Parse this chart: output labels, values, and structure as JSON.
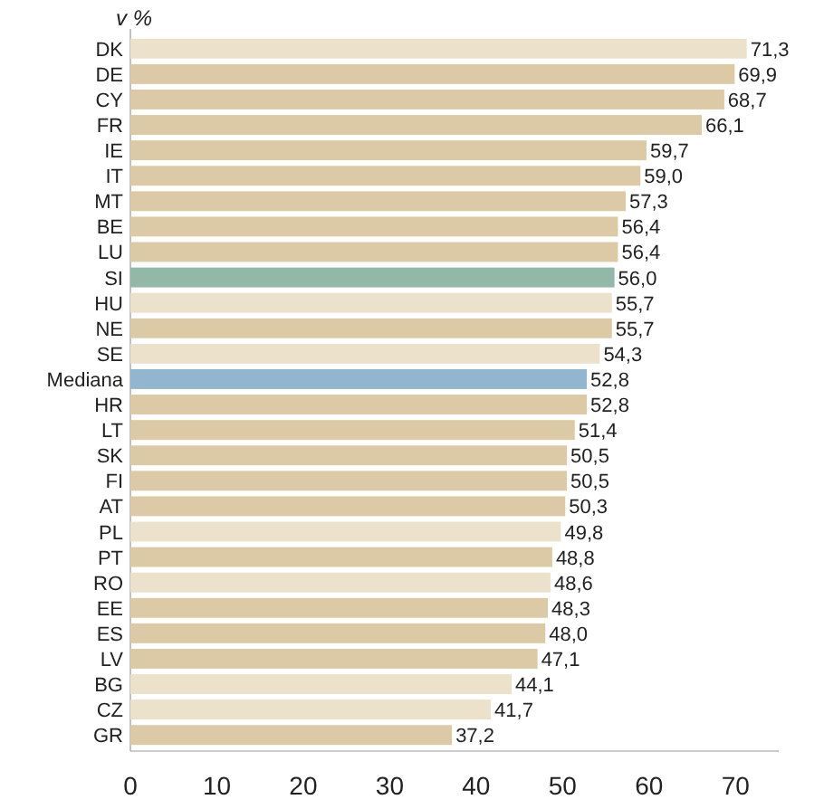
{
  "chart_data": {
    "type": "bar",
    "orientation": "horizontal",
    "xlabel": "v %",
    "categories": [
      "DK",
      "DE",
      "CY",
      "FR",
      "IE",
      "IT",
      "MT",
      "BE",
      "LU",
      "SI",
      "HU",
      "NE",
      "SE",
      "Mediana",
      "HR",
      "LT",
      "SK",
      "FI",
      "AT",
      "PL",
      "PT",
      "RO",
      "EE",
      "ES",
      "LV",
      "BG",
      "CZ",
      "GR"
    ],
    "values": [
      71.3,
      69.9,
      68.7,
      66.1,
      59.7,
      59.0,
      57.3,
      56.4,
      56.4,
      56.0,
      55.7,
      55.7,
      54.3,
      52.8,
      52.8,
      51.4,
      50.5,
      50.5,
      50.3,
      49.8,
      48.8,
      48.6,
      48.3,
      48.0,
      47.1,
      44.1,
      41.7,
      37.2
    ],
    "value_labels": [
      "71,3",
      "69,9",
      "68,7",
      "66,1",
      "59,7",
      "59,0",
      "57,3",
      "56,4",
      "56,4",
      "56,0",
      "55,7",
      "55,7",
      "54,3",
      "52,8",
      "52,8",
      "51,4",
      "50,5",
      "50,5",
      "50,3",
      "49,8",
      "48,8",
      "48,6",
      "48,3",
      "48,0",
      "47,1",
      "44,1",
      "41,7",
      "37,2"
    ],
    "colors": [
      "#ece2cc",
      "#dccaa6",
      "#dccaa6",
      "#dccaa6",
      "#dccaa6",
      "#dccaa6",
      "#dccaa6",
      "#dccaa6",
      "#dccaa6",
      "#92b8a8",
      "#ece2cc",
      "#dccaa6",
      "#ece2cc",
      "#92b6cf",
      "#dccaa6",
      "#dccaa6",
      "#dccaa6",
      "#dccaa6",
      "#dccaa6",
      "#ece2cc",
      "#dccaa6",
      "#ece2cc",
      "#dccaa6",
      "#dccaa6",
      "#dccaa6",
      "#ece2cc",
      "#ece2cc",
      "#dccaa6"
    ],
    "xlim": [
      0,
      75
    ],
    "xticks": [
      0,
      10,
      20,
      30,
      40,
      50,
      60,
      70
    ]
  }
}
